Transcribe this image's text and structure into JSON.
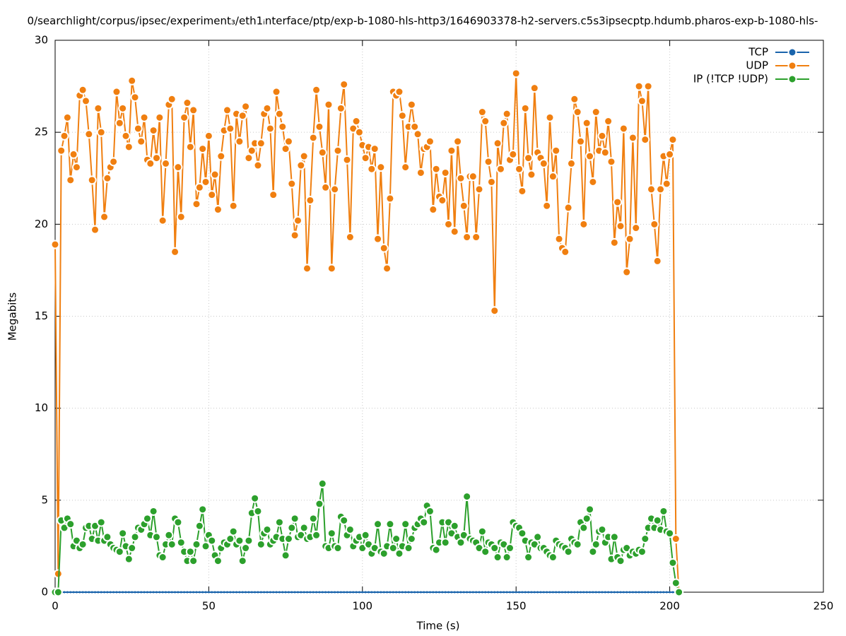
{
  "chart_data": {
    "type": "line",
    "title": "0/searchlight/corpus/ipsec/experiment₃/eth1ᵢnterface/ptp/exp-b-1080-hls-http3/1646903378-h2-servers.c5s3ipsecptp.hdumb.pharos-exp-b-1080-hls-",
    "x_label": "Time (s)",
    "y_label": "Megabits",
    "xlim": [
      0,
      250
    ],
    "xticks": [
      0,
      50,
      100,
      150,
      200,
      250
    ],
    "ylim": [
      0,
      30
    ],
    "yticks": [
      0,
      5,
      10,
      15,
      20,
      25,
      30
    ],
    "grid": true,
    "legend": "top-right",
    "x": [
      0,
      1,
      2,
      3,
      4,
      5,
      6,
      7,
      8,
      9,
      10,
      11,
      12,
      13,
      14,
      15,
      16,
      17,
      18,
      19,
      20,
      21,
      22,
      23,
      24,
      25,
      26,
      27,
      28,
      29,
      30,
      31,
      32,
      33,
      34,
      35,
      36,
      37,
      38,
      39,
      40,
      41,
      42,
      43,
      44,
      45,
      46,
      47,
      48,
      49,
      50,
      51,
      52,
      53,
      54,
      55,
      56,
      57,
      58,
      59,
      60,
      61,
      62,
      63,
      64,
      65,
      66,
      67,
      68,
      69,
      70,
      71,
      72,
      73,
      74,
      75,
      76,
      77,
      78,
      79,
      80,
      81,
      82,
      83,
      84,
      85,
      86,
      87,
      88,
      89,
      90,
      91,
      92,
      93,
      94,
      95,
      96,
      97,
      98,
      99,
      100,
      101,
      102,
      103,
      104,
      105,
      106,
      107,
      108,
      109,
      110,
      111,
      112,
      113,
      114,
      115,
      116,
      117,
      118,
      119,
      120,
      121,
      122,
      123,
      124,
      125,
      126,
      127,
      128,
      129,
      130,
      131,
      132,
      133,
      134,
      135,
      136,
      137,
      138,
      139,
      140,
      141,
      142,
      143,
      144,
      145,
      146,
      147,
      148,
      149,
      150,
      151,
      152,
      153,
      154,
      155,
      156,
      157,
      158,
      159,
      160,
      161,
      162,
      163,
      164,
      165,
      166,
      167,
      168,
      169,
      170,
      171,
      172,
      173,
      174,
      175,
      176,
      177,
      178,
      179,
      180,
      181,
      182,
      183,
      184,
      185,
      186,
      187,
      188,
      189,
      190,
      191,
      192,
      193,
      194,
      195,
      196,
      197,
      198,
      199,
      200,
      201,
      202,
      203
    ],
    "series": [
      {
        "name": "TCP",
        "color": "#1a64ac",
        "values": [
          0,
          0,
          0,
          0,
          0,
          0,
          0,
          0,
          0,
          0,
          0,
          0,
          0,
          0,
          0,
          0,
          0,
          0,
          0,
          0,
          0,
          0,
          0,
          0,
          0,
          0,
          0,
          0,
          0,
          0,
          0,
          0,
          0,
          0,
          0,
          0,
          0,
          0,
          0,
          0,
          0,
          0,
          0,
          0,
          0,
          0,
          0,
          0,
          0,
          0,
          0,
          0,
          0,
          0,
          0,
          0,
          0,
          0,
          0,
          0,
          0,
          0,
          0,
          0,
          0,
          0,
          0,
          0,
          0,
          0,
          0,
          0,
          0,
          0,
          0,
          0,
          0,
          0,
          0,
          0,
          0,
          0,
          0,
          0,
          0,
          0,
          0,
          0,
          0,
          0,
          0,
          0,
          0,
          0,
          0,
          0,
          0,
          0,
          0,
          0,
          0,
          0,
          0,
          0,
          0,
          0,
          0,
          0,
          0,
          0,
          0,
          0,
          0,
          0,
          0,
          0,
          0,
          0,
          0,
          0,
          0,
          0,
          0,
          0,
          0,
          0,
          0,
          0,
          0,
          0,
          0,
          0,
          0,
          0,
          0,
          0,
          0,
          0,
          0,
          0,
          0,
          0,
          0,
          0,
          0,
          0,
          0,
          0,
          0,
          0,
          0,
          0,
          0,
          0,
          0,
          0,
          0,
          0,
          0,
          0,
          0,
          0,
          0,
          0,
          0,
          0,
          0,
          0,
          0,
          0,
          0,
          0,
          0,
          0,
          0,
          0,
          0,
          0,
          0,
          0,
          0,
          0,
          0,
          0,
          0,
          0,
          0,
          0,
          0,
          0,
          0,
          0,
          0,
          0,
          0,
          0,
          0,
          0,
          0,
          0,
          0,
          0,
          0,
          0
        ]
      },
      {
        "name": "UDP",
        "color": "#f07f10",
        "values": [
          18.9,
          1.0,
          24.0,
          24.8,
          25.8,
          22.4,
          23.8,
          23.1,
          27.0,
          27.3,
          26.7,
          24.9,
          22.4,
          19.7,
          26.3,
          25.0,
          20.4,
          22.5,
          23.1,
          23.4,
          27.2,
          25.5,
          26.3,
          24.8,
          24.2,
          27.8,
          26.9,
          25.2,
          24.5,
          25.8,
          23.5,
          23.3,
          25.1,
          23.6,
          25.8,
          20.2,
          23.3,
          26.5,
          26.8,
          18.5,
          23.1,
          20.4,
          25.8,
          26.6,
          24.2,
          26.2,
          21.1,
          22.0,
          24.1,
          22.3,
          24.8,
          21.6,
          22.7,
          20.8,
          23.7,
          25.1,
          26.2,
          25.2,
          21.0,
          26.0,
          24.5,
          25.9,
          26.4,
          23.6,
          24.0,
          24.4,
          23.2,
          24.4,
          26.0,
          26.3,
          25.2,
          21.6,
          27.2,
          26.0,
          25.3,
          24.1,
          24.5,
          22.2,
          19.4,
          20.2,
          23.2,
          23.7,
          17.6,
          21.3,
          24.7,
          27.3,
          25.3,
          23.9,
          22.0,
          26.5,
          17.6,
          21.9,
          24.0,
          26.3,
          27.6,
          23.5,
          19.3,
          25.2,
          25.6,
          25.0,
          24.3,
          23.6,
          24.2,
          23.0,
          24.1,
          19.2,
          23.1,
          18.7,
          17.6,
          21.4,
          27.2,
          27.0,
          27.2,
          25.9,
          23.1,
          25.3,
          26.5,
          25.3,
          24.9,
          22.8,
          24.1,
          24.2,
          24.5,
          20.8,
          23.0,
          21.5,
          21.3,
          22.8,
          20.0,
          24.0,
          19.6,
          24.5,
          22.5,
          21.0,
          19.3,
          22.6,
          22.6,
          19.3,
          21.9,
          26.1,
          25.6,
          23.4,
          22.3,
          15.3,
          24.4,
          23.0,
          25.5,
          26.0,
          23.5,
          23.8,
          28.2,
          23.0,
          21.8,
          26.3,
          23.6,
          22.7,
          27.4,
          23.9,
          23.6,
          23.3,
          21.0,
          25.8,
          22.6,
          24.0,
          19.2,
          18.7,
          18.5,
          20.9,
          23.3,
          26.8,
          26.1,
          24.5,
          20.0,
          25.5,
          23.7,
          22.3,
          26.1,
          24.0,
          24.8,
          23.9,
          25.6,
          23.4,
          19.0,
          21.2,
          19.9,
          25.2,
          17.4,
          19.2,
          24.7,
          19.8,
          27.5,
          26.7,
          24.6,
          27.5,
          21.9,
          20.0,
          18.0,
          21.9,
          23.7,
          22.2,
          23.8,
          24.6,
          2.9,
          0
        ]
      },
      {
        "name": "IP (!TCP  !UDP)",
        "color": "#2ca02c",
        "values": [
          0,
          0,
          3.9,
          3.5,
          4.0,
          3.7,
          2.5,
          2.8,
          2.4,
          2.6,
          3.5,
          3.6,
          2.9,
          3.6,
          2.8,
          3.8,
          2.8,
          3.0,
          2.6,
          2.4,
          2.3,
          2.2,
          3.2,
          2.5,
          1.8,
          2.4,
          3.0,
          3.5,
          3.4,
          3.7,
          4.0,
          3.1,
          4.4,
          3.0,
          2.0,
          1.9,
          2.6,
          3.1,
          2.6,
          4.0,
          3.8,
          2.7,
          2.2,
          1.7,
          2.2,
          1.7,
          2.6,
          3.6,
          4.5,
          2.5,
          3.1,
          2.8,
          2.0,
          1.7,
          2.4,
          2.7,
          2.6,
          2.9,
          3.3,
          2.6,
          2.8,
          1.7,
          2.4,
          2.8,
          4.3,
          5.1,
          4.4,
          2.6,
          3.2,
          3.4,
          2.6,
          2.8,
          3.0,
          3.8,
          2.9,
          2.0,
          2.9,
          3.5,
          4.0,
          3.0,
          3.1,
          3.5,
          2.9,
          3.0,
          4.0,
          3.1,
          4.8,
          5.9,
          2.5,
          2.4,
          3.2,
          2.5,
          2.4,
          4.1,
          3.9,
          3.1,
          3.4,
          2.5,
          2.8,
          3.0,
          2.4,
          3.1,
          2.6,
          2.1,
          2.4,
          3.7,
          2.2,
          2.1,
          2.5,
          3.7,
          2.4,
          2.9,
          2.1,
          2.5,
          3.7,
          2.4,
          2.9,
          3.5,
          3.7,
          4.0,
          3.8,
          4.7,
          4.4,
          2.4,
          2.3,
          2.7,
          3.8,
          2.7,
          3.8,
          3.2,
          3.6,
          3.0,
          2.7,
          3.1,
          5.2,
          2.9,
          2.8,
          2.7,
          2.4,
          3.3,
          2.2,
          2.7,
          2.6,
          2.4,
          1.9,
          2.7,
          2.6,
          1.9,
          2.4,
          3.8,
          3.6,
          3.5,
          3.2,
          2.8,
          1.9,
          2.7,
          2.6,
          3.0,
          2.4,
          2.4,
          2.2,
          2.0,
          1.9,
          2.8,
          2.6,
          2.5,
          2.4,
          2.2,
          2.9,
          2.7,
          2.6,
          3.8,
          3.5,
          4.0,
          4.5,
          2.2,
          2.6,
          3.3,
          3.4,
          2.7,
          3.0,
          1.8,
          3.0,
          1.9,
          1.7,
          2.3,
          2.4,
          2.0,
          2.2,
          2.1,
          2.3,
          2.2,
          2.9,
          3.5,
          4.0,
          3.5,
          3.9,
          3.4,
          4.4,
          3.3,
          3.2,
          1.6,
          0.5,
          0
        ]
      }
    ]
  }
}
